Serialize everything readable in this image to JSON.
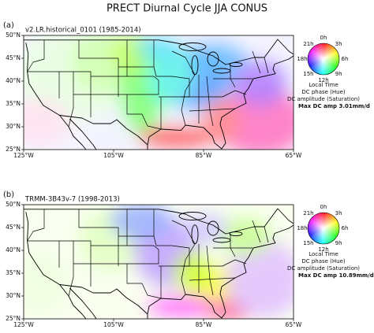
{
  "title": "PRECT Diurnal Cycle  JJA CONUS",
  "panels": [
    {
      "label": "(a)",
      "subtitle": "v2.LR.historical_0101 (1985-2014)",
      "lat_ticks": [
        "50°N",
        "45°N",
        "40°N",
        "35°N",
        "30°N",
        "25°N"
      ],
      "lon_ticks": [
        "125°W",
        "105°W",
        "85°W",
        "65°W"
      ],
      "wheel": {
        "hours": [
          "0h",
          "3h",
          "6h",
          "9h",
          "12h",
          "15h",
          "18h",
          "21h"
        ],
        "lines": [
          "Local Time",
          "DC phase (Hue)",
          "DC amplitude (Saturation)"
        ],
        "max_amp": "Max DC amp 3.01mm/d"
      }
    },
    {
      "label": "(b)",
      "subtitle": "TRMM-3B43v-7 (1998-2013)",
      "lat_ticks": [
        "50°N",
        "45°N",
        "40°N",
        "35°N",
        "30°N",
        "25°N"
      ],
      "lon_ticks": [
        "125°W",
        "105°W",
        "85°W",
        "65°W"
      ],
      "wheel": {
        "hours": [
          "0h",
          "3h",
          "6h",
          "9h",
          "12h",
          "15h",
          "18h",
          "21h"
        ],
        "lines": [
          "Local Time",
          "DC phase (Hue)",
          "DC amplitude (Saturation)"
        ],
        "max_amp": "Max DC amp 10.89mm/d"
      }
    }
  ]
}
